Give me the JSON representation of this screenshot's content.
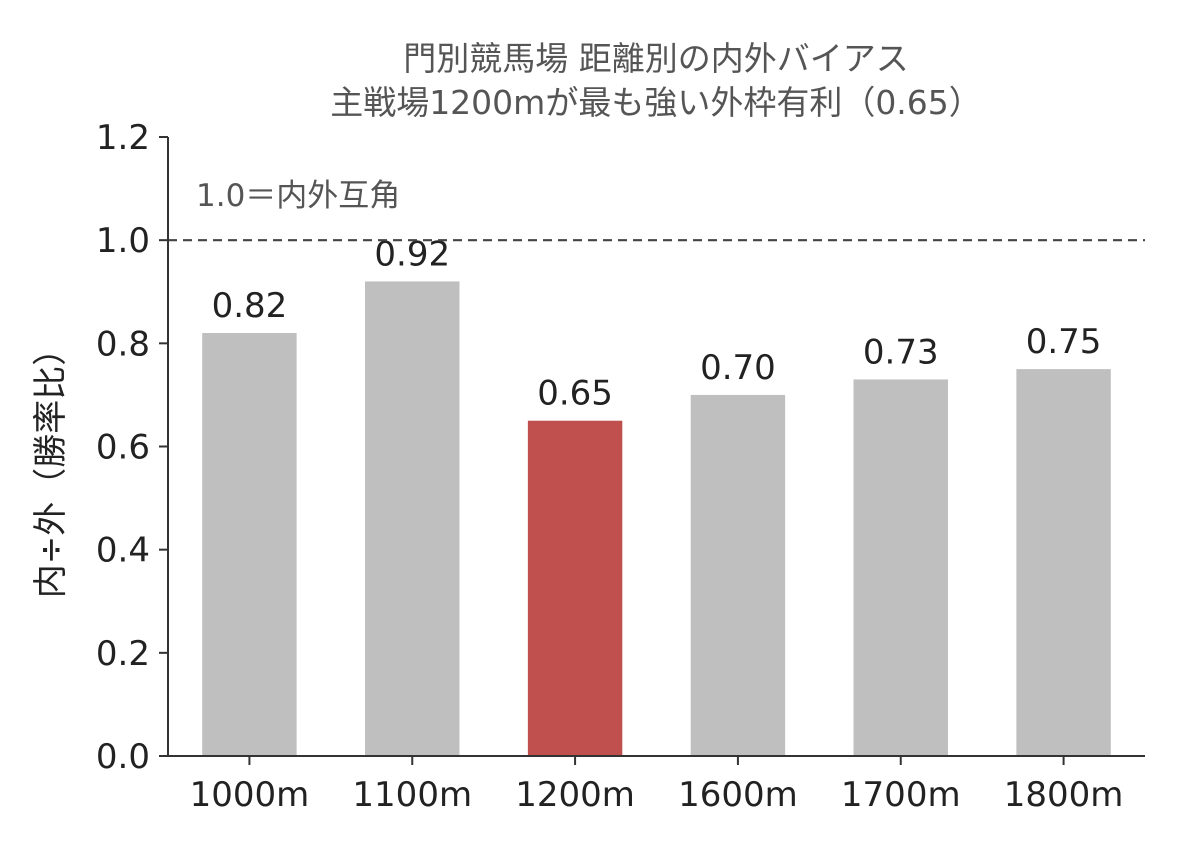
{
  "chart_data": {
    "type": "bar",
    "title_line1": "門別競馬場 距離別の内外バイアス",
    "title_line2": "主戦場1200mが最も強い外枠有利（0.65）",
    "xlabel": "",
    "ylabel": "内÷外（勝率比）",
    "ylim": [
      0,
      1.2
    ],
    "yticks": [
      0.0,
      0.2,
      0.4,
      0.6,
      0.8,
      1.0,
      1.2
    ],
    "ytick_labels": [
      "0.0",
      "0.2",
      "0.4",
      "0.6",
      "0.8",
      "1.0",
      "1.2"
    ],
    "categories": [
      "1000m",
      "1100m",
      "1200m",
      "1600m",
      "1700m",
      "1800m"
    ],
    "values": [
      0.82,
      0.92,
      0.65,
      0.7,
      0.73,
      0.75
    ],
    "value_labels": [
      "0.82",
      "0.92",
      "0.65",
      "0.70",
      "0.73",
      "0.75"
    ],
    "highlight_index": 2,
    "bar_color": "#bfbfbf",
    "highlight_color": "#c0504d",
    "reference_line": {
      "value": 1.0,
      "label": "1.0＝内外互角",
      "style": "dashed",
      "color": "#444444"
    },
    "grid": false,
    "legend": "none"
  }
}
